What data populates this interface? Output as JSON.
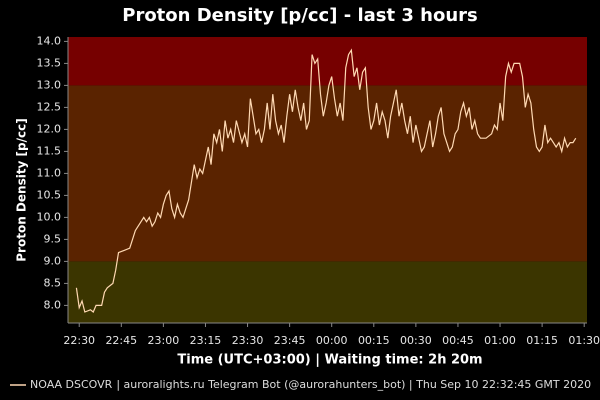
{
  "chart_data": {
    "type": "line",
    "title": "Proton Density [p/cc] - last 3 hours",
    "x_label": "Time (UTC+03:00) | Waiting time: 2h 20m",
    "y_label": "Proton Density [p/cc]",
    "footer": "| auroralights.ru Telegram Bot (@aurorahunters_bot) | Thu Sep 10 22:32:45 GMT 2020",
    "xlim": [
      "22:26",
      "01:31"
    ],
    "xticks": [
      "22:30",
      "22:45",
      "23:00",
      "23:15",
      "23:30",
      "23:45",
      "00:00",
      "00:15",
      "00:30",
      "00:45",
      "01:00",
      "01:15",
      "01:30"
    ],
    "ylim": [
      7.6,
      14.1
    ],
    "yticks": [
      {
        "value": 8,
        "label": "8.0"
      },
      8.5,
      {
        "value": 9,
        "label": "9.0"
      },
      9.5,
      {
        "value": 10,
        "label": "10.0"
      },
      10.5,
      {
        "value": 11,
        "label": "11.0"
      },
      11.5,
      {
        "value": 12,
        "label": "12.0"
      },
      12.5,
      {
        "value": 13,
        "label": "13.0"
      },
      13.5,
      {
        "value": 14,
        "label": "14.0"
      }
    ],
    "bands": [
      {
        "from": 7.6,
        "to": 9,
        "color": "#3b3500"
      },
      {
        "from": 9,
        "to": 13,
        "color": "#5a2300"
      },
      {
        "from": 13,
        "to": 14.1,
        "color": "#760000"
      }
    ],
    "x": [
      "22:29",
      "22:30",
      "22:31",
      "22:32",
      "22:34",
      "22:35",
      "22:36",
      "22:38",
      "22:39",
      "22:40",
      "22:42",
      "22:43",
      "22:44",
      "22:46",
      "22:48",
      "22:49",
      "22:50",
      "22:51",
      "22:52",
      "22:53",
      "22:54",
      "22:55",
      "22:56",
      "22:57",
      "22:58",
      "22:59",
      "23:00",
      "23:01",
      "23:02",
      "23:03",
      "23:04",
      "23:05",
      "23:06",
      "23:07",
      "23:08",
      "23:09",
      "23:10",
      "23:11",
      "23:12",
      "23:13",
      "23:14",
      "23:16",
      "23:17",
      "23:18",
      "23:19",
      "23:20",
      "23:21",
      "23:22",
      "23:23",
      "23:24",
      "23:25",
      "23:26",
      "23:28",
      "23:29",
      "23:30",
      "23:31",
      "23:32",
      "23:33",
      "23:34",
      "23:35",
      "23:36",
      "23:37",
      "23:38",
      "23:39",
      "23:40",
      "23:41",
      "23:42",
      "23:43",
      "23:44",
      "23:45",
      "23:46",
      "23:47",
      "23:48",
      "23:49",
      "23:50",
      "23:51",
      "23:52",
      "23:53",
      "23:54",
      "23:55",
      "23:56",
      "23:57",
      "23:58",
      "23:59",
      "00:00",
      "00:01",
      "00:02",
      "00:03",
      "00:04",
      "00:05",
      "00:06",
      "00:07",
      "00:08",
      "00:09",
      "00:10",
      "00:11",
      "00:12",
      "00:13",
      "00:14",
      "00:15",
      "00:16",
      "00:17",
      "00:18",
      "00:19",
      "00:20",
      "00:21",
      "00:22",
      "00:23",
      "00:24",
      "00:25",
      "00:26",
      "00:27",
      "00:28",
      "00:29",
      "00:30",
      "00:31",
      "00:32",
      "00:33",
      "00:34",
      "00:35",
      "00:36",
      "00:37",
      "00:38",
      "00:39",
      "00:40",
      "00:41",
      "00:42",
      "00:43",
      "00:44",
      "00:45",
      "00:46",
      "00:47",
      "00:48",
      "00:49",
      "00:50",
      "00:51",
      "00:52",
      "00:53",
      "00:55",
      "00:57",
      "00:58",
      "00:59",
      "01:00",
      "01:01",
      "01:02",
      "01:03",
      "01:04",
      "01:05",
      "01:06",
      "01:07",
      "01:08",
      "01:09",
      "01:10",
      "01:11",
      "01:12",
      "01:13",
      "01:14",
      "01:15",
      "01:16",
      "01:17",
      "01:18",
      "01:19",
      "01:20",
      "01:21",
      "01:22",
      "01:23",
      "01:24",
      "01:25",
      "01:26",
      "01:27"
    ],
    "series": [
      {
        "name": "NOAA DSCOVR",
        "color": "#ffd9b3",
        "values": [
          8.4,
          7.95,
          8.1,
          7.85,
          7.9,
          7.85,
          8.0,
          8.0,
          8.3,
          8.4,
          8.5,
          8.8,
          9.2,
          9.25,
          9.3,
          9.5,
          9.7,
          9.8,
          9.9,
          10.0,
          9.9,
          10.0,
          9.8,
          9.9,
          10.1,
          10.0,
          10.3,
          10.5,
          10.6,
          10.2,
          10.0,
          10.3,
          10.1,
          10.0,
          10.2,
          10.4,
          10.8,
          11.2,
          10.9,
          11.1,
          11.0,
          11.6,
          11.2,
          11.9,
          11.7,
          12.0,
          11.5,
          12.2,
          11.8,
          12.0,
          11.7,
          12.2,
          11.7,
          11.9,
          11.6,
          12.7,
          12.3,
          11.9,
          12.0,
          11.7,
          12.0,
          12.6,
          12.0,
          12.8,
          12.2,
          11.9,
          12.1,
          11.7,
          12.3,
          12.8,
          12.4,
          12.9,
          12.5,
          12.2,
          12.6,
          12.0,
          12.2,
          13.7,
          13.5,
          13.6,
          12.8,
          12.3,
          12.6,
          13.0,
          13.2,
          12.7,
          12.3,
          12.6,
          12.2,
          13.4,
          13.7,
          13.8,
          13.2,
          13.4,
          12.9,
          13.3,
          13.4,
          12.5,
          12.0,
          12.2,
          12.6,
          12.1,
          12.4,
          12.2,
          11.8,
          12.3,
          12.6,
          12.9,
          12.3,
          12.6,
          12.2,
          11.9,
          12.3,
          11.7,
          12.1,
          11.8,
          11.5,
          11.6,
          11.9,
          12.2,
          11.6,
          11.9,
          12.3,
          12.5,
          11.9,
          11.7,
          11.5,
          11.6,
          11.9,
          12.0,
          12.4,
          12.6,
          12.3,
          12.5,
          12.0,
          12.2,
          11.9,
          11.8,
          11.8,
          11.9,
          12.1,
          12.0,
          12.6,
          12.2,
          13.2,
          13.5,
          13.3,
          13.5,
          13.5,
          13.5,
          13.2,
          12.5,
          12.8,
          12.6,
          12.0,
          11.6,
          11.5,
          11.6,
          12.1,
          11.7,
          11.8,
          11.7,
          11.6,
          11.7,
          11.5,
          11.8,
          11.6,
          11.7,
          11.7,
          11.8
        ]
      }
    ]
  }
}
